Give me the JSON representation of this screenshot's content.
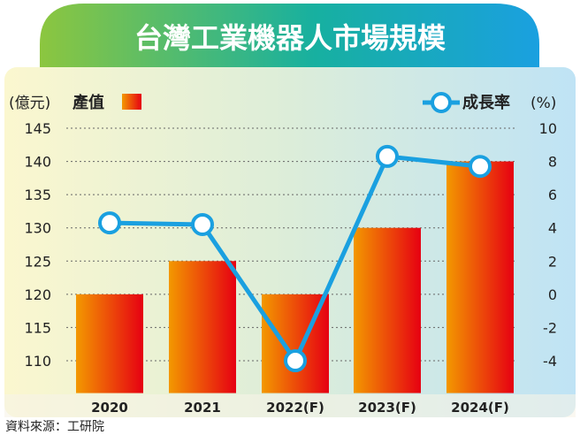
{
  "title": "台灣工業機器人市場規模",
  "source": "資料來源：工研院",
  "colors": {
    "bar_start": "#f39800",
    "bar_end": "#e60012",
    "line": "#1aa0e0",
    "title_start": "#8cc63f",
    "title_end": "#1aa0e0"
  },
  "chart_data": {
    "type": "bar+line",
    "categories": [
      "2020",
      "2021",
      "2022(F)",
      "2023(F)",
      "2024(F)"
    ],
    "left_axis": {
      "label": "(億元)",
      "ticks": [
        145,
        140,
        135,
        130,
        125,
        120,
        115,
        110
      ],
      "range": [
        105,
        145
      ]
    },
    "right_axis": {
      "label": "(%)",
      "ticks": [
        "10",
        "8",
        "6",
        "4",
        "2",
        "0",
        "-2",
        "-4"
      ],
      "range": [
        -6,
        10
      ]
    },
    "series": [
      {
        "name": "產值",
        "type": "bar",
        "axis": "left",
        "values": [
          120,
          125,
          120,
          130,
          140
        ]
      },
      {
        "name": "成長率",
        "type": "line",
        "axis": "right",
        "values": [
          4.3,
          4.2,
          -4,
          8.3,
          7.7
        ]
      }
    ],
    "grid": true,
    "legend": "top"
  }
}
